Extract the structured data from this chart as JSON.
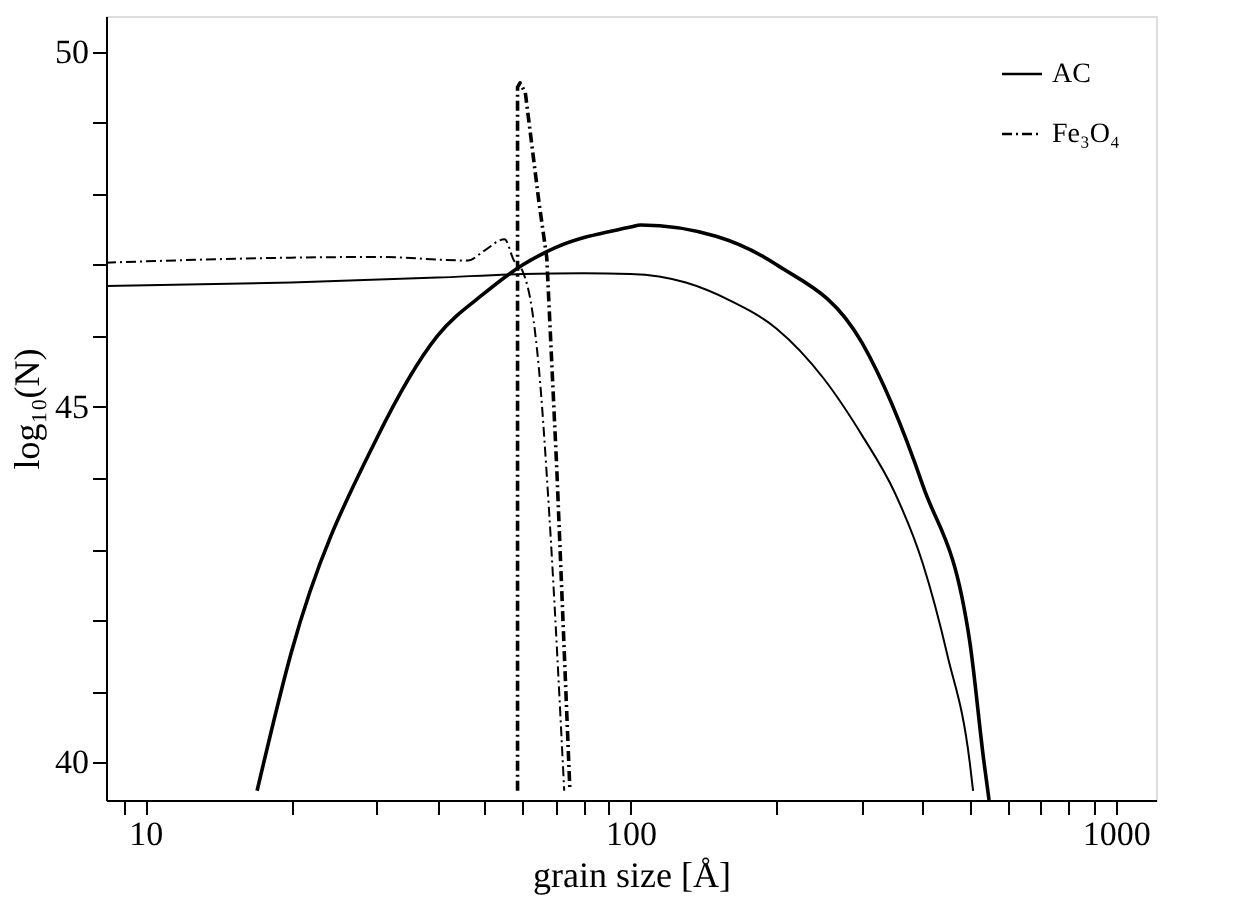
{
  "chart_data": {
    "type": "line",
    "xlabel": "grain size [Å]",
    "ylabel": "log₁₀(N)",
    "log": "x",
    "xlim": [
      8.3,
      1210
    ],
    "ylim": [
      39.47,
      50.5
    ],
    "xticks": [
      {
        "value": 9,
        "label": null
      },
      10,
      {
        "value": 20,
        "label": null
      },
      {
        "value": 30,
        "label": null
      },
      {
        "value": 40,
        "label": null
      },
      {
        "value": 50,
        "label": null
      },
      {
        "value": 60,
        "label": null
      },
      {
        "value": 70,
        "label": null
      },
      {
        "value": 80,
        "label": null
      },
      {
        "value": 90,
        "label": null
      },
      100,
      {
        "value": 200,
        "label": null
      },
      {
        "value": 300,
        "label": null
      },
      {
        "value": 400,
        "label": null
      },
      {
        "value": 500,
        "label": null
      },
      {
        "value": 600,
        "label": null
      },
      {
        "value": 700,
        "label": null
      },
      {
        "value": 800,
        "label": null
      },
      {
        "value": 900,
        "label": null
      },
      1000
    ],
    "yticks": [
      40,
      {
        "value": 41,
        "label": null
      },
      {
        "value": 42,
        "label": null
      },
      {
        "value": 43,
        "label": null
      },
      {
        "value": 44,
        "label": null
      },
      45,
      {
        "value": 46,
        "label": null
      },
      {
        "value": 47,
        "label": null
      },
      {
        "value": 48,
        "label": null
      },
      {
        "value": 49,
        "label": null
      },
      50
    ],
    "grid": false,
    "legend": "top right",
    "marker": "none",
    "series": [
      {
        "name": "AC",
        "color": "#000000",
        "line_style": "solid",
        "x": [
          8.3,
          20,
          40,
          60,
          80,
          100,
          130,
          160,
          200,
          250,
          300,
          350,
          400,
          450,
          500,
          508
        ],
        "values": [
          46.7,
          46.75,
          46.82,
          46.87,
          46.88,
          46.87,
          46.75,
          46.5,
          46.1,
          45.4,
          44.6,
          43.8,
          42.8,
          41.5,
          40.0,
          39.6
        ]
      },
      {
        "name": "Fe₃O₄",
        "color": "#000000",
        "line_style": "dashdot",
        "x": [
          8.3,
          20,
          30,
          46.2,
          50,
          55,
          57.5,
          60,
          62.6,
          64.7,
          67.9,
          73.0
        ],
        "values": [
          47.03,
          47.1,
          47.11,
          47.06,
          47.2,
          47.36,
          47.06,
          46.9,
          46.39,
          45.56,
          43.56,
          39.6
        ]
      },
      {
        "color": "#000000",
        "line_style": "solid",
        "x": [
          17.0,
          20,
          30,
          40,
          50,
          60,
          70,
          100,
          105,
          150,
          200,
          300,
          400,
          500,
          535,
          548
        ],
        "values": [
          39.6,
          41.55,
          44.56,
          46.0,
          46.6,
          47.0,
          47.24,
          47.53,
          47.56,
          47.4,
          47.0,
          45.9,
          43.9,
          41.7,
          40.0,
          39.47
        ]
      },
      {
        "color": "#000000",
        "line_style": "dashdot",
        "x": [
          58.5,
          58.5,
          59.2,
          60.7,
          64.7,
          67.2,
          70.5,
          75.0
        ],
        "values": [
          39.6,
          49.5,
          49.56,
          49.42,
          47.9,
          47.1,
          44.1,
          39.6
        ]
      }
    ]
  }
}
